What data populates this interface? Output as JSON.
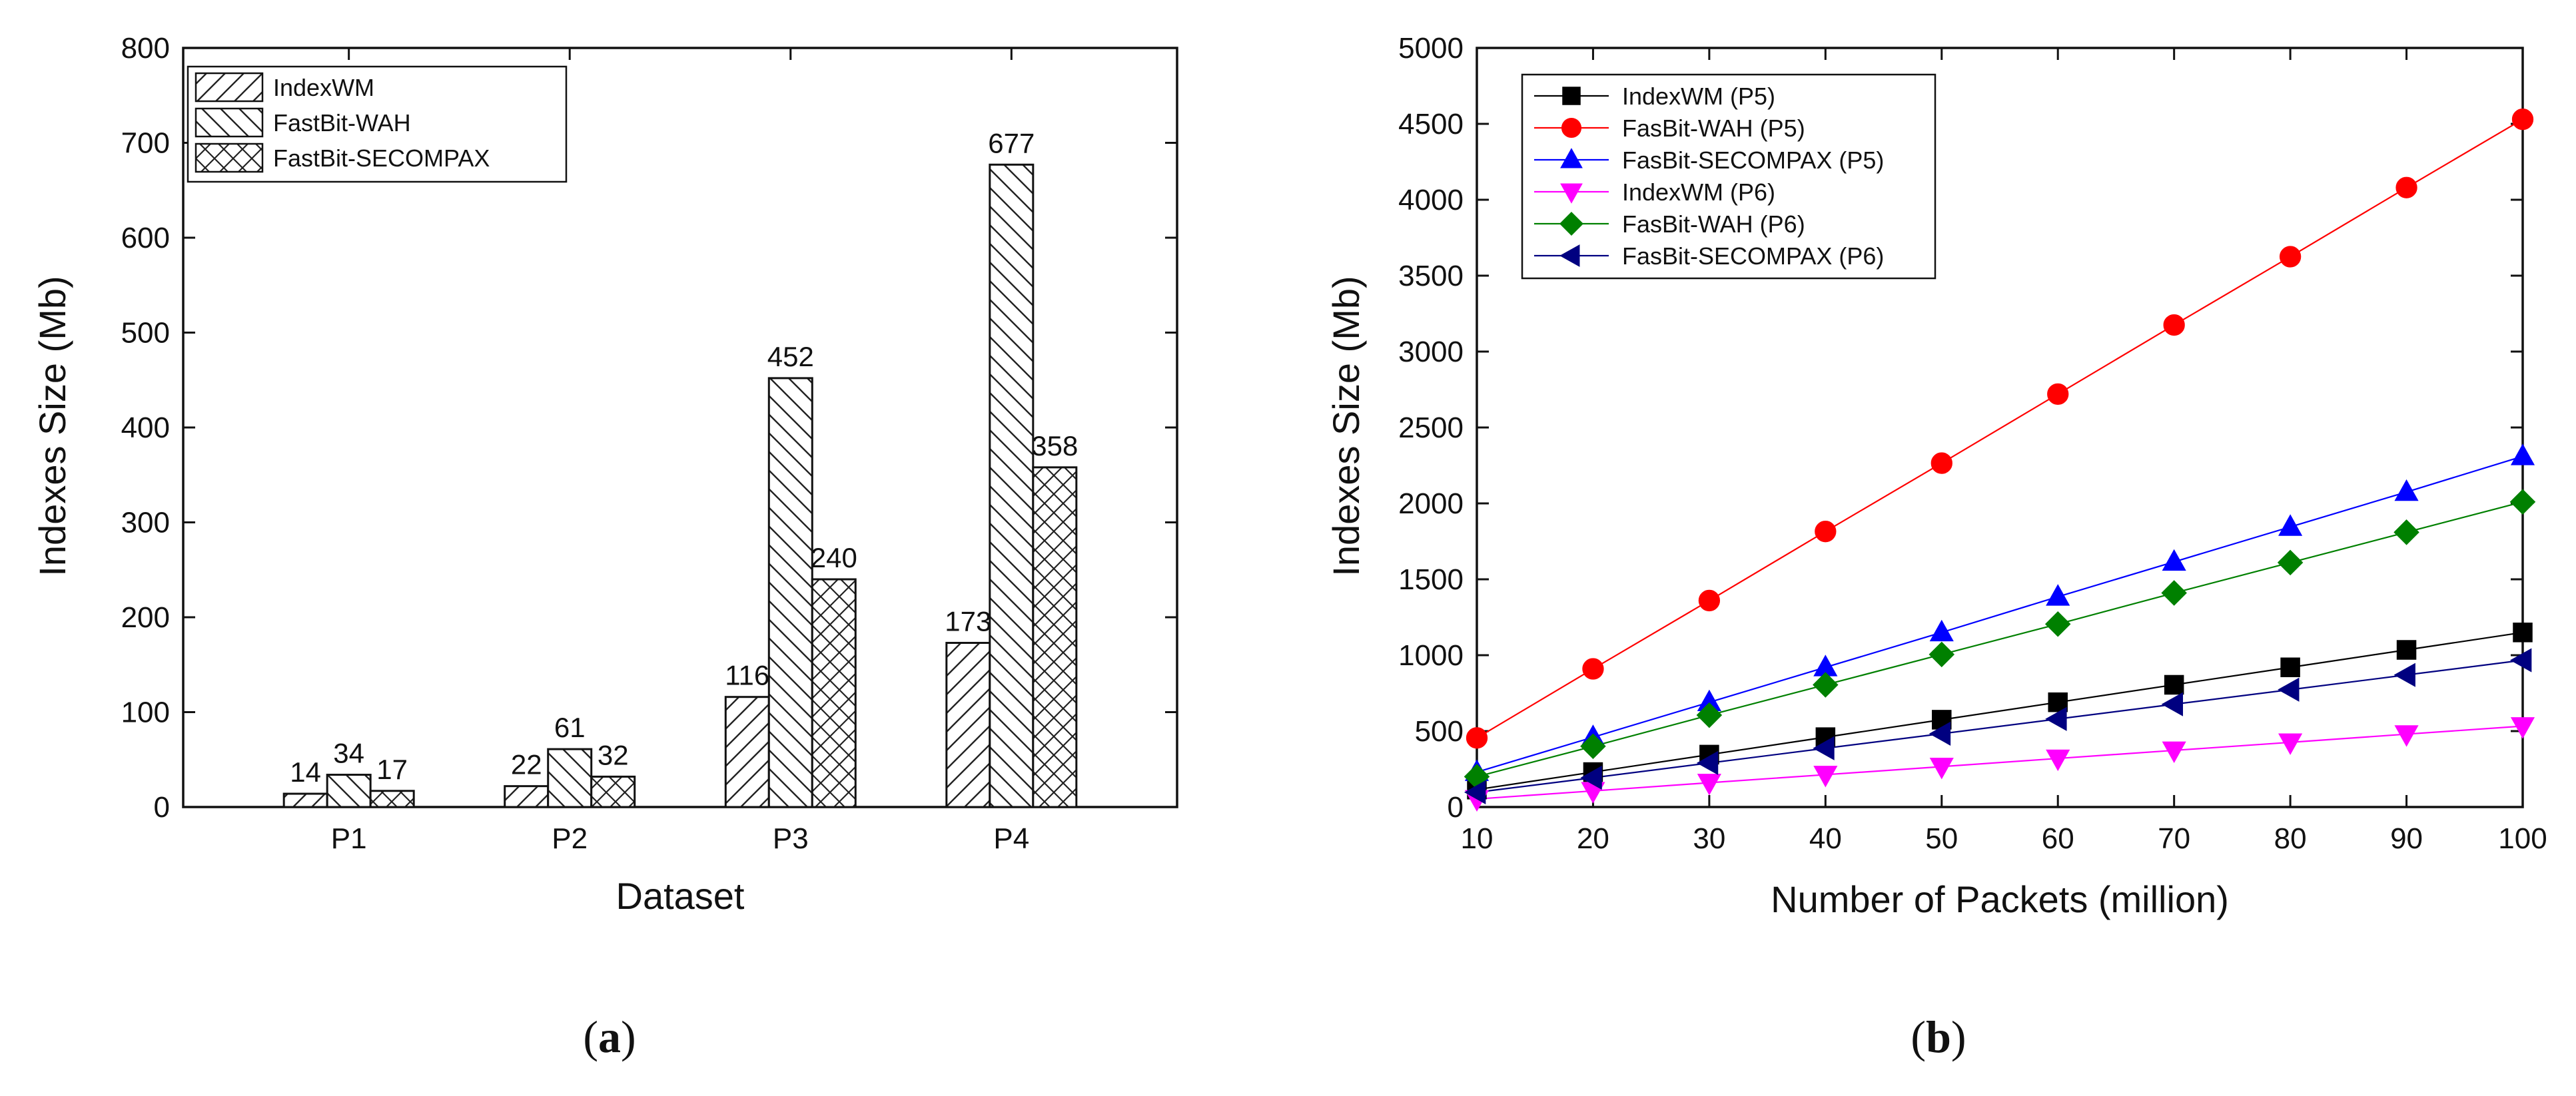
{
  "chart_data": [
    {
      "panel": "(a)",
      "type": "bar",
      "title": "",
      "xlabel": "Dataset",
      "ylabel": "Indexes Size (Mb)",
      "ylim": [
        0,
        800
      ],
      "yticks": [
        0,
        100,
        200,
        300,
        400,
        500,
        600,
        700,
        800
      ],
      "categories": [
        "P1",
        "P2",
        "P3",
        "P4"
      ],
      "legend_position": "top-left",
      "series": [
        {
          "name": "IndexWM",
          "pattern": "diag-forward",
          "values": [
            14,
            22,
            116,
            173
          ]
        },
        {
          "name": "FastBit-WAH",
          "pattern": "diag-backward",
          "values": [
            34,
            61,
            452,
            677
          ]
        },
        {
          "name": "FastBit-SECOMPAX",
          "pattern": "cross",
          "values": [
            17,
            32,
            240,
            358
          ]
        }
      ]
    },
    {
      "panel": "(b)",
      "type": "line",
      "title": "",
      "xlabel": "Number of Packets (million)",
      "ylabel": "Indexes Size (Mb)",
      "xlim": [
        10,
        100
      ],
      "ylim": [
        0,
        5000
      ],
      "xticks": [
        10,
        20,
        30,
        40,
        50,
        60,
        70,
        80,
        90,
        100
      ],
      "yticks": [
        0,
        500,
        1000,
        1500,
        2000,
        2500,
        3000,
        3500,
        4000,
        4500,
        5000
      ],
      "legend_position": "top-left",
      "x": [
        10,
        20,
        30,
        40,
        50,
        60,
        70,
        80,
        90,
        100
      ],
      "series": [
        {
          "name": "IndexWM (P5)",
          "color": "#000000",
          "marker": "square",
          "values": [
            115,
            230,
            345,
            460,
            575,
            690,
            805,
            920,
            1035,
            1150
          ]
        },
        {
          "name": "FasBit-WAH (P5)",
          "color": "#ff0000",
          "marker": "circle",
          "values": [
            455,
            910,
            1360,
            1815,
            2265,
            2720,
            3175,
            3625,
            4080,
            4530
          ]
        },
        {
          "name": "FasBit-SECOMPAX (P5)",
          "color": "#0000ff",
          "marker": "triangle-up",
          "values": [
            230,
            460,
            690,
            920,
            1150,
            1385,
            1615,
            1845,
            2075,
            2310
          ]
        },
        {
          "name": "IndexWM (P6)",
          "color": "#ff00ff",
          "marker": "triangle-down",
          "values": [
            53,
            106,
            160,
            213,
            266,
            320,
            373,
            426,
            480,
            533
          ]
        },
        {
          "name": "FasBit-WAH (P6)",
          "color": "#008000",
          "marker": "diamond",
          "values": [
            200,
            400,
            605,
            805,
            1005,
            1205,
            1410,
            1610,
            1810,
            2010
          ]
        },
        {
          "name": "FasBit-SECOMPAX (P6)",
          "color": "#000080",
          "marker": "triangle-left",
          "values": [
            97,
            193,
            290,
            387,
            483,
            580,
            677,
            773,
            870,
            967
          ]
        }
      ]
    }
  ]
}
